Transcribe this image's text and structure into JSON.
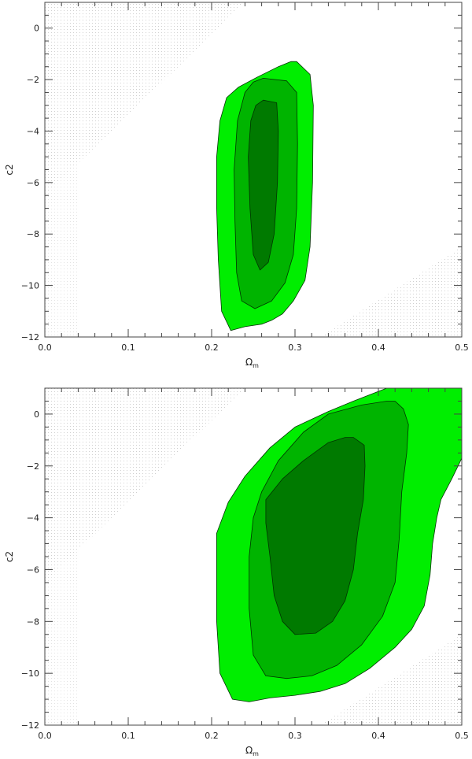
{
  "colors": {
    "level_68": "#007a00",
    "level_95": "#00b400",
    "level_99": "#00ee00",
    "outline": "#003300",
    "axis": "#444444"
  },
  "chart_data": [
    {
      "type": "contour",
      "xlabel": "Ω_m",
      "ylabel": "c2",
      "xlim": [
        0.0,
        0.5
      ],
      "ylim": [
        -12,
        1
      ],
      "xticks": [
        0.0,
        0.1,
        0.2,
        0.3,
        0.4,
        0.5
      ],
      "xtick_labels": [
        "0.0",
        "0.1",
        "0.2",
        "0.3",
        "0.4",
        "0.5"
      ],
      "yticks": [
        0,
        -2,
        -4,
        -6,
        -8,
        -10,
        -12
      ],
      "ytick_labels": [
        "0",
        "−2",
        "−4",
        "−6",
        "−8",
        "−10",
        "−12"
      ],
      "grid": false,
      "contours": [
        {
          "level": "outer",
          "color": "#00ee00",
          "points": [
            [
              0.302,
              -1.3
            ],
            [
              0.318,
              -1.8
            ],
            [
              0.322,
              -3.0
            ],
            [
              0.321,
              -6.0
            ],
            [
              0.318,
              -8.5
            ],
            [
              0.312,
              -9.8
            ],
            [
              0.298,
              -10.6
            ],
            [
              0.285,
              -11.1
            ],
            [
              0.272,
              -11.35
            ],
            [
              0.26,
              -11.5
            ],
            [
              0.24,
              -11.6
            ],
            [
              0.223,
              -11.75
            ],
            [
              0.212,
              -11.0
            ],
            [
              0.208,
              -9.0
            ],
            [
              0.206,
              -7.0
            ],
            [
              0.206,
              -5.0
            ],
            [
              0.21,
              -3.6
            ],
            [
              0.218,
              -2.7
            ],
            [
              0.232,
              -2.3
            ],
            [
              0.255,
              -1.9
            ],
            [
              0.28,
              -1.5
            ],
            [
              0.295,
              -1.3
            ]
          ]
        },
        {
          "level": "middle",
          "color": "#00b400",
          "points": [
            [
              0.262,
              -1.95
            ],
            [
              0.29,
              -2.05
            ],
            [
              0.302,
              -2.5
            ],
            [
              0.303,
              -4.5
            ],
            [
              0.302,
              -7.0
            ],
            [
              0.298,
              -8.8
            ],
            [
              0.288,
              -9.9
            ],
            [
              0.272,
              -10.6
            ],
            [
              0.252,
              -10.9
            ],
            [
              0.236,
              -10.6
            ],
            [
              0.23,
              -9.5
            ],
            [
              0.228,
              -7.5
            ],
            [
              0.227,
              -5.5
            ],
            [
              0.231,
              -3.6
            ],
            [
              0.24,
              -2.5
            ],
            [
              0.25,
              -2.1
            ]
          ]
        },
        {
          "level": "inner",
          "color": "#007a00",
          "points": [
            [
              0.262,
              -2.8
            ],
            [
              0.278,
              -2.9
            ],
            [
              0.28,
              -4.0
            ],
            [
              0.279,
              -6.0
            ],
            [
              0.275,
              -8.0
            ],
            [
              0.268,
              -9.1
            ],
            [
              0.258,
              -9.4
            ],
            [
              0.25,
              -8.8
            ],
            [
              0.246,
              -7.0
            ],
            [
              0.244,
              -5.0
            ],
            [
              0.247,
              -3.6
            ],
            [
              0.253,
              -3.0
            ]
          ]
        }
      ]
    },
    {
      "type": "contour",
      "xlabel": "Ω_m",
      "ylabel": "c2",
      "xlim": [
        0.0,
        0.5
      ],
      "ylim": [
        -12,
        1
      ],
      "xticks": [
        0.0,
        0.1,
        0.2,
        0.3,
        0.4,
        0.5
      ],
      "xtick_labels": [
        "0.0",
        "0.1",
        "0.2",
        "0.3",
        "0.4",
        "0.5"
      ],
      "yticks": [
        0,
        -2,
        -4,
        -6,
        -8,
        -10,
        -12
      ],
      "ytick_labels": [
        "0",
        "−2",
        "−4",
        "−6",
        "−8",
        "−10",
        "−12"
      ],
      "grid": false,
      "contours": [
        {
          "level": "outer",
          "color": "#00ee00",
          "points": [
            [
              0.41,
              1.0
            ],
            [
              0.5,
              1.0
            ],
            [
              0.5,
              -1.7
            ],
            [
              0.488,
              -2.5
            ],
            [
              0.475,
              -3.3
            ],
            [
              0.47,
              -4.0
            ],
            [
              0.465,
              -5.0
            ],
            [
              0.462,
              -6.2
            ],
            [
              0.455,
              -7.4
            ],
            [
              0.44,
              -8.3
            ],
            [
              0.42,
              -9.0
            ],
            [
              0.39,
              -9.8
            ],
            [
              0.36,
              -10.4
            ],
            [
              0.33,
              -10.7
            ],
            [
              0.3,
              -10.85
            ],
            [
              0.27,
              -10.95
            ],
            [
              0.245,
              -11.1
            ],
            [
              0.225,
              -11.0
            ],
            [
              0.21,
              -10.0
            ],
            [
              0.206,
              -8.0
            ],
            [
              0.206,
              -6.0
            ],
            [
              0.206,
              -4.6
            ],
            [
              0.22,
              -3.4
            ],
            [
              0.24,
              -2.4
            ],
            [
              0.27,
              -1.3
            ],
            [
              0.3,
              -0.5
            ],
            [
              0.34,
              0.1
            ],
            [
              0.37,
              0.5
            ]
          ]
        },
        {
          "level": "middle",
          "color": "#00b400",
          "points": [
            [
              0.42,
              0.5
            ],
            [
              0.43,
              0.2
            ],
            [
              0.436,
              -0.4
            ],
            [
              0.434,
              -1.5
            ],
            [
              0.428,
              -3.0
            ],
            [
              0.425,
              -4.8
            ],
            [
              0.42,
              -6.5
            ],
            [
              0.405,
              -7.8
            ],
            [
              0.38,
              -8.9
            ],
            [
              0.35,
              -9.7
            ],
            [
              0.32,
              -10.1
            ],
            [
              0.29,
              -10.2
            ],
            [
              0.265,
              -10.1
            ],
            [
              0.25,
              -9.3
            ],
            [
              0.245,
              -7.5
            ],
            [
              0.245,
              -5.5
            ],
            [
              0.25,
              -4.0
            ],
            [
              0.26,
              -3.0
            ],
            [
              0.28,
              -1.8
            ],
            [
              0.31,
              -0.7
            ],
            [
              0.34,
              0.0
            ],
            [
              0.38,
              0.35
            ],
            [
              0.41,
              0.5
            ]
          ]
        },
        {
          "level": "inner",
          "color": "#007a00",
          "points": [
            [
              0.37,
              -0.9
            ],
            [
              0.383,
              -1.2
            ],
            [
              0.384,
              -2.0
            ],
            [
              0.382,
              -3.3
            ],
            [
              0.375,
              -4.6
            ],
            [
              0.37,
              -6.0
            ],
            [
              0.36,
              -7.2
            ],
            [
              0.345,
              -8.0
            ],
            [
              0.325,
              -8.45
            ],
            [
              0.3,
              -8.5
            ],
            [
              0.285,
              -8.0
            ],
            [
              0.275,
              -7.0
            ],
            [
              0.27,
              -5.5
            ],
            [
              0.265,
              -4.2
            ],
            [
              0.265,
              -3.3
            ],
            [
              0.285,
              -2.5
            ],
            [
              0.31,
              -1.8
            ],
            [
              0.34,
              -1.1
            ],
            [
              0.36,
              -0.9
            ]
          ]
        }
      ]
    }
  ]
}
